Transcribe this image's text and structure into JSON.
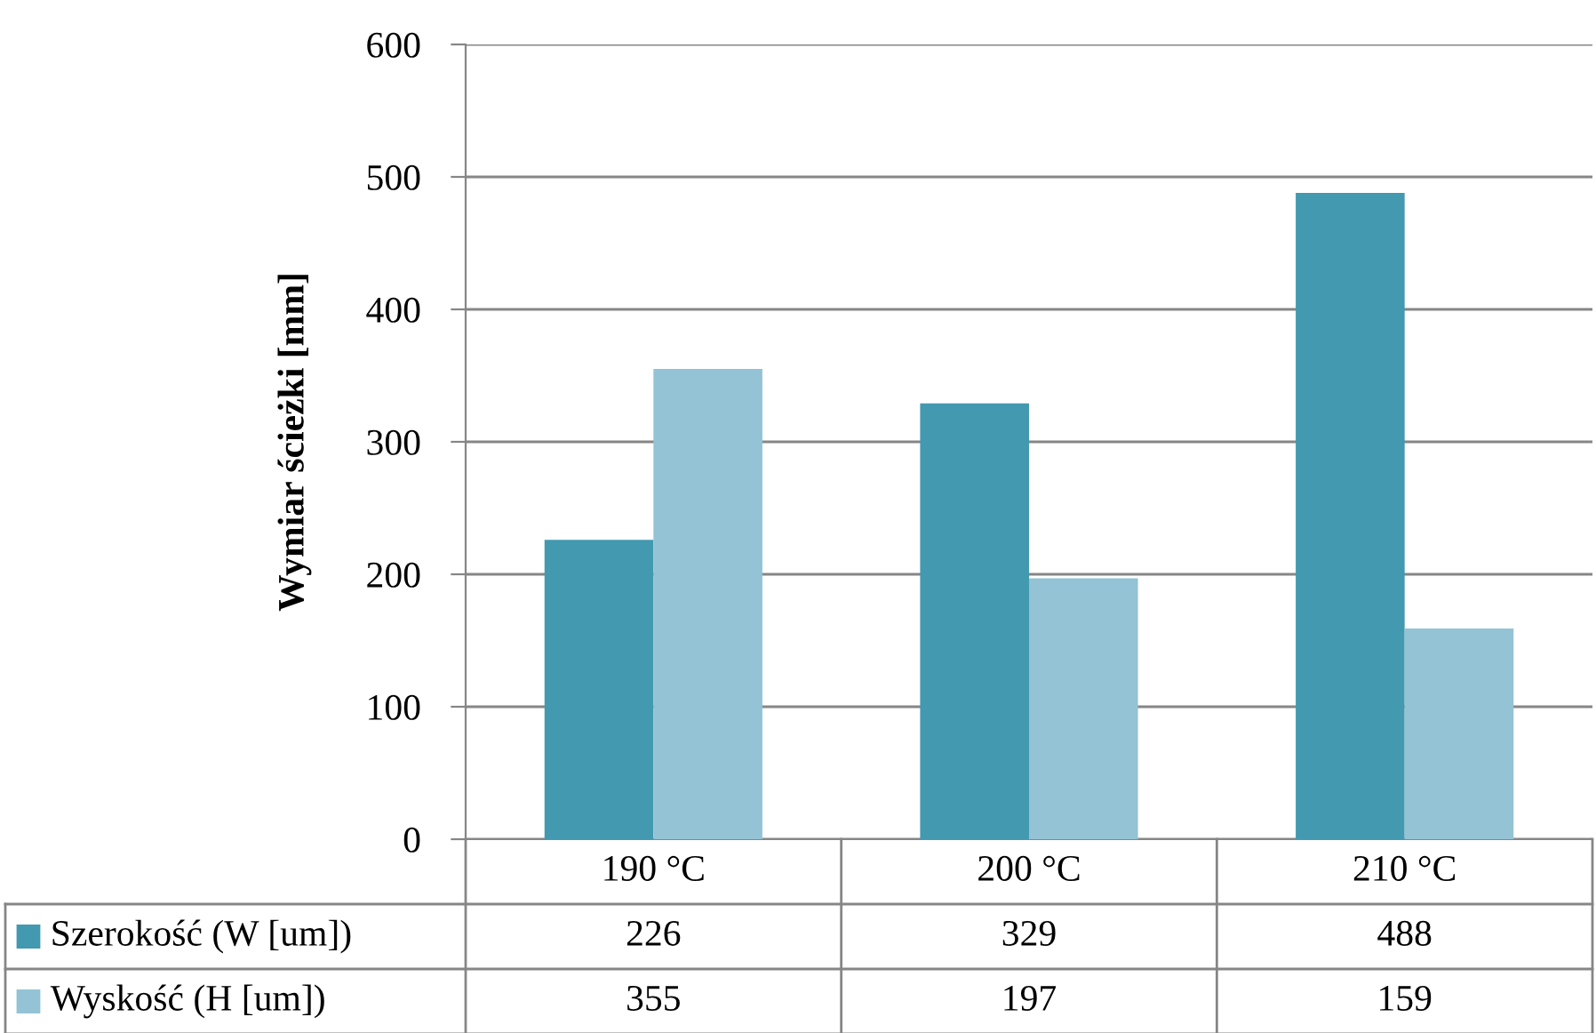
{
  "chart_data": {
    "type": "bar",
    "ylabel": "Wymiar ścieżki [mm]",
    "categories": [
      "190 °C",
      "200 °C",
      "210 °C"
    ],
    "series": [
      {
        "name": "Szerokość (W [um])",
        "color": "#4299b0",
        "values": [
          226,
          329,
          488
        ]
      },
      {
        "name": "Wyskość (H [um])",
        "color": "#93c3d4",
        "values": [
          355,
          197,
          159
        ]
      }
    ],
    "ylim": [
      0,
      600
    ],
    "yticks": [
      0,
      100,
      200,
      300,
      400,
      500,
      600
    ],
    "grid": "y",
    "data_labels": true,
    "legend": "bottom"
  }
}
